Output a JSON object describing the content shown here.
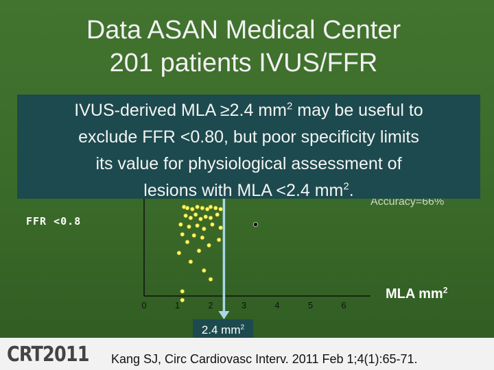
{
  "slide": {
    "title_line1": "Data ASAN Medical Center",
    "title_line2": "201 patients IVUS/FFR",
    "callout_line1_a": "IVUS-derived MLA ≥2.4 mm",
    "callout_line1_sup": "2",
    "callout_line1_b": " may be useful to",
    "callout_line2": "exclude FFR <0.80, but poor specificity limits",
    "callout_line3": "its value for physiological assessment of",
    "callout_line4_a": "lesions with MLA <2.4 mm",
    "callout_line4_sup": "2",
    "callout_line4_b": ".",
    "accuracy_text": "Accuracy=66%",
    "citation": "Kang SJ, Circ Cardiovasc Interv. 2011 Feb 1;4(1):65-71.",
    "logo": "CRT2011",
    "colors": {
      "background": "#3b6b2a",
      "callout": "#1d4a4e",
      "points": "#ffff66",
      "cutoff": "#a8d8e8"
    }
  },
  "chart_data": {
    "type": "scatter",
    "xlabel": "MLA",
    "xlabel_unit": "mm",
    "xlabel_sup": "2",
    "ylabel": "FFR <0.8",
    "x_ticks": [
      "0",
      "1",
      "2",
      "3",
      "4",
      "5",
      "6"
    ],
    "xlim": [
      0,
      6.8
    ],
    "cutoff": {
      "x": 2.4,
      "label": "2.4 mm",
      "label_sup": "2"
    },
    "series": [
      {
        "color": "#ffff66",
        "points": [
          [
            1.2,
            0.2
          ],
          [
            1.3,
            0.21
          ],
          [
            1.45,
            0.22
          ],
          [
            1.6,
            0.2
          ],
          [
            1.75,
            0.21
          ],
          [
            1.9,
            0.22
          ],
          [
            2.0,
            0.2
          ],
          [
            2.15,
            0.21
          ],
          [
            2.3,
            0.22
          ],
          [
            1.25,
            0.28
          ],
          [
            1.4,
            0.3
          ],
          [
            1.55,
            0.27
          ],
          [
            1.7,
            0.31
          ],
          [
            1.85,
            0.29
          ],
          [
            2.0,
            0.3
          ],
          [
            2.2,
            0.27
          ],
          [
            1.1,
            0.36
          ],
          [
            1.35,
            0.38
          ],
          [
            1.6,
            0.37
          ],
          [
            1.8,
            0.4
          ],
          [
            2.05,
            0.36
          ],
          [
            2.3,
            0.39
          ],
          [
            1.5,
            0.46
          ],
          [
            1.75,
            0.48
          ],
          [
            2.25,
            0.5
          ],
          [
            1.3,
            0.52
          ],
          [
            1.95,
            0.55
          ],
          [
            1.15,
            0.45
          ],
          [
            1.65,
            0.6
          ],
          [
            1.05,
            0.62
          ],
          [
            1.4,
            0.7
          ],
          [
            1.8,
            0.78
          ],
          [
            2.0,
            0.86
          ],
          [
            1.15,
            0.97
          ],
          [
            1.15,
            1.05
          ]
        ]
      },
      {
        "color": "#111111",
        "points": [
          [
            3.35,
            0.36
          ]
        ]
      }
    ]
  }
}
